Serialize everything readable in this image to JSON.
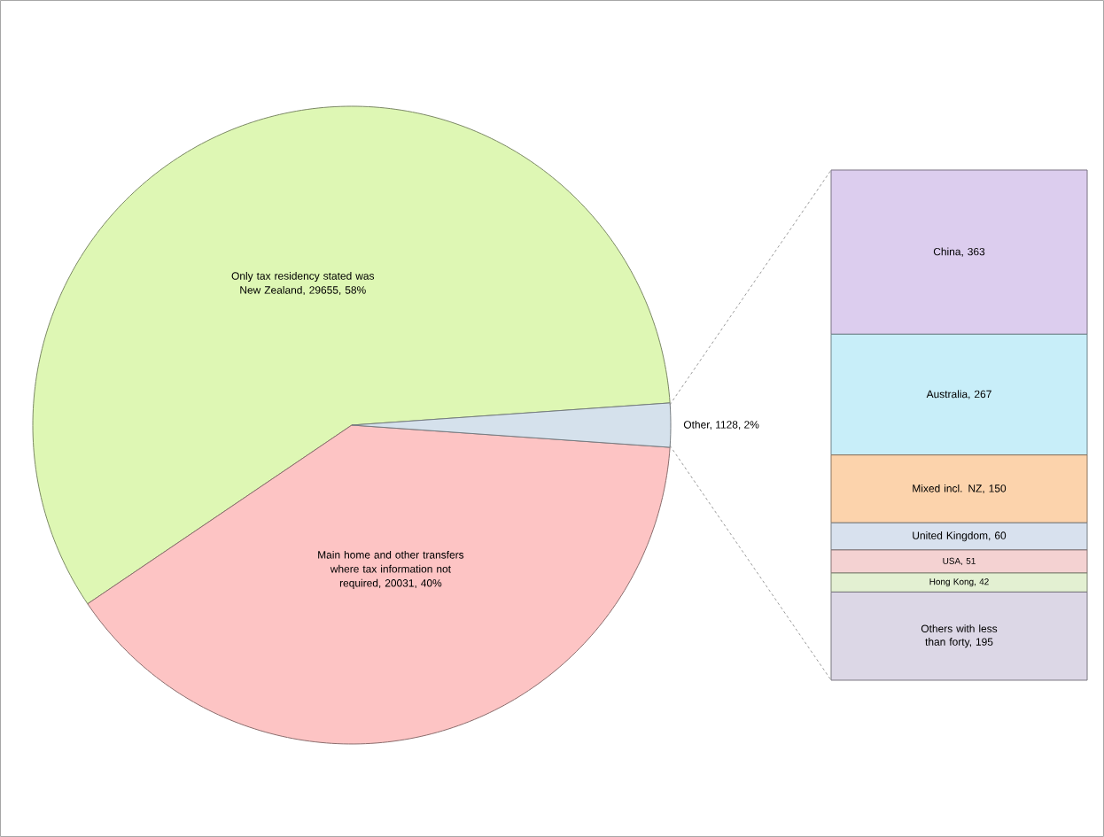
{
  "chart_data": [
    {
      "type": "pie",
      "categories": [
        "Only tax residency stated was New Zealand, 29655, 58%",
        "Main home and other transfers where tax information not required, 20031, 40%",
        "Other, 1128, 2%"
      ],
      "values": [
        29655,
        20031,
        1128
      ],
      "colors": [
        "#def7b4",
        "#fdc4c4",
        "#d5e1ec"
      ]
    },
    {
      "type": "bar",
      "stacked": true,
      "categories": [
        null
      ],
      "series": [
        {
          "color": "#dcd7e6",
          "values": [
            195
          ],
          "value_labels": [
            "Others with less than forty, 195"
          ]
        },
        {
          "color": "#e3f0d2",
          "values": [
            42
          ],
          "value_labels": [
            "Hong Kong, 42"
          ]
        },
        {
          "color": "#f4d2d2",
          "values": [
            51
          ],
          "value_labels": [
            "USA, 51"
          ]
        },
        {
          "color": "#d8e1ee",
          "values": [
            60
          ],
          "value_labels": [
            "United Kingdom, 60"
          ]
        },
        {
          "color": "#fcd3ac",
          "values": [
            150
          ],
          "value_labels": [
            "Mixed incl. NZ, 150"
          ]
        },
        {
          "color": "#c8eef9",
          "values": [
            267
          ],
          "value_labels": [
            "Australia, 267"
          ]
        },
        {
          "color": "#dccdee",
          "values": [
            363
          ],
          "value_labels": [
            "China, 363"
          ]
        }
      ]
    }
  ]
}
